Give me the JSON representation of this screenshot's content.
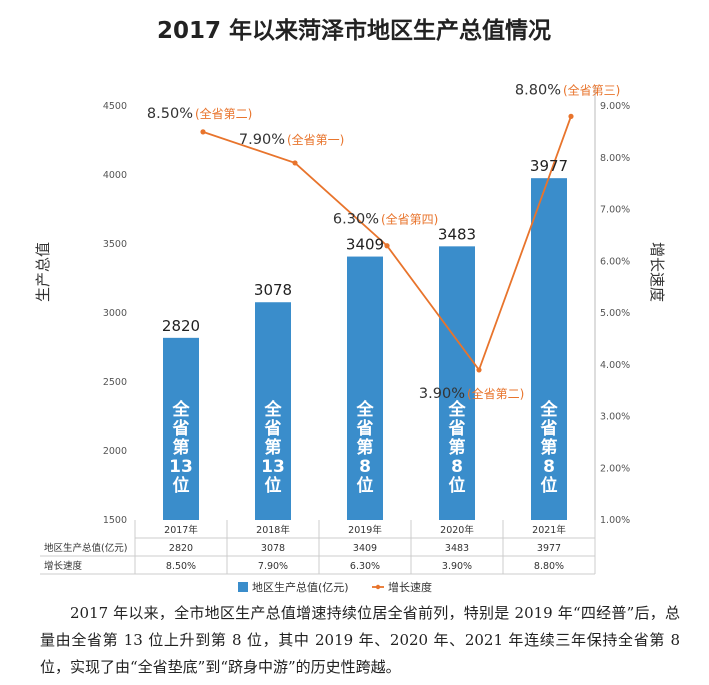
{
  "chart_data": {
    "type": "bar",
    "title": "2017 年以来菏泽市地区生产总值情况",
    "categories": [
      "2017年",
      "2018年",
      "2019年",
      "2020年",
      "2021年"
    ],
    "series": [
      {
        "name": "地区生产总值(亿元)",
        "type": "bar",
        "axis": "left",
        "values": [
          2820,
          3078,
          3409,
          3483,
          3977
        ],
        "color": "#3a8dcb"
      },
      {
        "name": "增长速度",
        "type": "line",
        "axis": "right",
        "values": [
          8.5,
          7.9,
          6.3,
          3.9,
          8.8
        ],
        "labels": [
          "8.50%",
          "7.90%",
          "6.30%",
          "3.90%",
          "8.80%"
        ],
        "color": "#e8742c"
      }
    ],
    "rate_rank_labels": [
      "(全省第二)",
      "(全省第一)",
      "(全省第四)",
      "(全省第二)",
      "(全省第三)"
    ],
    "bar_rank_labels": [
      [
        "全",
        "省",
        "第",
        "13",
        "位"
      ],
      [
        "全",
        "省",
        "第",
        "13",
        "位"
      ],
      [
        "全",
        "省",
        "第",
        "8",
        "位"
      ],
      [
        "全",
        "省",
        "第",
        "8",
        "位"
      ],
      [
        "全",
        "省",
        "第",
        "8",
        "位"
      ]
    ],
    "ylabel": "生产总值",
    "y2label": "增长速度",
    "ylim": [
      1500,
      4500
    ],
    "yticks": [
      "1500",
      "2000",
      "2500",
      "3000",
      "3500",
      "4000",
      "4500"
    ],
    "y2lim": [
      1,
      9
    ],
    "y2ticks": [
      "1.00%",
      "2.00%",
      "3.00%",
      "4.00%",
      "5.00%",
      "6.00%",
      "7.00%",
      "8.00%",
      "9.00%"
    ],
    "table": {
      "rows": [
        {
          "header": "地区生产总值(亿元)",
          "values": [
            "2820",
            "3078",
            "3409",
            "3483",
            "3977"
          ]
        },
        {
          "header": "增长速度",
          "values": [
            "8.50%",
            "7.90%",
            "6.30%",
            "3.90%",
            "8.80%"
          ]
        }
      ]
    },
    "legend": [
      "地区生产总值(亿元)",
      "增长速度"
    ]
  },
  "description": "2017 年以来，全市地区生产总值增速持续位居全省前列，特别是 2019 年“四经普”后，总量由全省第 13 位上升到第 8 位，其中 2019 年、2020 年、2021 年连续三年保持全省第 8 位，实现了由“全省垫底”到“跻身中游”的历史性跨越。"
}
